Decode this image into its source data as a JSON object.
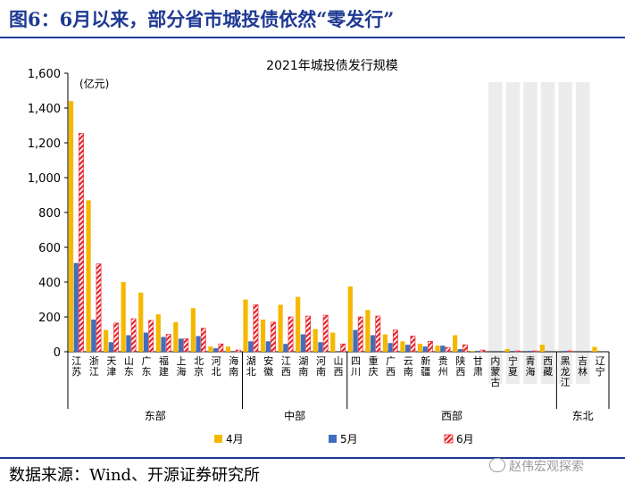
{
  "figure_title": "图6：6月以来，部分省市城投债依然“零发行”",
  "source": "数据来源：Wind、开源证券研究所",
  "watermark": "赵伟宏观探索",
  "colors": {
    "apr": "#F5B800",
    "may": "#3F6EBF",
    "jun": "#E8232A",
    "shade": "#ECECEC",
    "title": "#1f3a93"
  },
  "chart_data": {
    "type": "bar",
    "title": "2021年城投债发行规模",
    "unit_label": "(亿元)",
    "ylim": [
      0,
      1600
    ],
    "yticks": [
      "0",
      "200",
      "400",
      "600",
      "800",
      "1,000",
      "1,200",
      "1,400",
      "1,600"
    ],
    "categories": [
      "江苏",
      "浙江",
      "天津",
      "山东",
      "广东",
      "福建",
      "上海",
      "北京",
      "河北",
      "海南",
      "湖北",
      "安徽",
      "江西",
      "湖南",
      "河南",
      "山西",
      "四川",
      "重庆",
      "广西",
      "云南",
      "新疆",
      "贵州",
      "陕西",
      "甘肃",
      "内蒙古",
      "宁夏",
      "青海",
      "西藏",
      "黑龙江",
      "吉林",
      "辽宁"
    ],
    "series": [
      {
        "name": "4月",
        "values": [
          1440,
          870,
          125,
          400,
          340,
          215,
          170,
          250,
          30,
          30,
          300,
          185,
          270,
          315,
          130,
          110,
          375,
          240,
          100,
          60,
          45,
          35,
          95,
          5,
          0,
          15,
          0,
          40,
          0,
          0,
          28
        ]
      },
      {
        "name": "5月",
        "values": [
          510,
          185,
          55,
          95,
          110,
          85,
          75,
          90,
          20,
          0,
          60,
          60,
          45,
          100,
          55,
          0,
          125,
          95,
          50,
          40,
          30,
          35,
          15,
          5,
          0,
          5,
          5,
          0,
          5,
          0,
          0
        ]
      },
      {
        "name": "6月",
        "values": [
          1255,
          505,
          165,
          190,
          180,
          100,
          75,
          135,
          45,
          10,
          270,
          170,
          200,
          205,
          210,
          45,
          200,
          205,
          125,
          90,
          60,
          25,
          40,
          10,
          0,
          5,
          5,
          0,
          5,
          0,
          0
        ]
      }
    ],
    "regions": [
      {
        "name": "东部",
        "start": 0,
        "end": 9
      },
      {
        "name": "中部",
        "start": 10,
        "end": 15
      },
      {
        "name": "西部",
        "start": 16,
        "end": 27
      },
      {
        "name": "东北",
        "start": 28,
        "end": 30
      }
    ],
    "shaded_categories": [
      "内蒙古",
      "宁夏",
      "青海",
      "西藏",
      "黑龙江",
      "吉林"
    ],
    "legend_position": "bottom",
    "grid": false
  }
}
